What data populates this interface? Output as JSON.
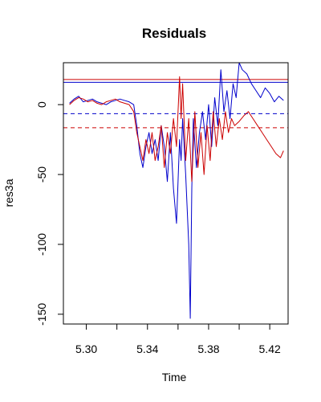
{
  "chart_data": {
    "type": "line",
    "title": "Residuals",
    "xlabel": "Time",
    "ylabel": "res3a",
    "xlim": [
      5.285,
      5.432
    ],
    "ylim": [
      -157,
      30
    ],
    "x_ticks": [
      5.3,
      5.34,
      5.38,
      5.42
    ],
    "x_tick_labels": [
      "5.30",
      "5.34",
      "5.38",
      "5.42"
    ],
    "y_ticks": [
      0,
      -50,
      -100,
      -150
    ],
    "y_tick_labels": [
      "0",
      "-50",
      "-100",
      "-150"
    ],
    "x_minor_ticks": [
      5.28,
      5.32,
      5.36,
      5.4,
      5.44
    ],
    "grid": false,
    "legend": "none",
    "hlines": [
      {
        "y": 18,
        "style": "solid",
        "color": "#cc0000"
      },
      {
        "y": 16,
        "style": "solid",
        "color": "#0000cc"
      },
      {
        "y": -6.5,
        "style": "dashed",
        "color": "#0000cc"
      },
      {
        "y": -16.5,
        "style": "dashed",
        "color": "#cc0000"
      }
    ],
    "series": [
      {
        "color": "#0000cc",
        "x": [
          5.289,
          5.292,
          5.295,
          5.298,
          5.301,
          5.304,
          5.307,
          5.31,
          5.313,
          5.316,
          5.319,
          5.322,
          5.325,
          5.328,
          5.331,
          5.333,
          5.335,
          5.337,
          5.339,
          5.341,
          5.343,
          5.345,
          5.347,
          5.349,
          5.351,
          5.353,
          5.355,
          5.357,
          5.359,
          5.361,
          5.362,
          5.363,
          5.365,
          5.366,
          5.367,
          5.368,
          5.369,
          5.37,
          5.372,
          5.374,
          5.376,
          5.378,
          5.38,
          5.382,
          5.384,
          5.386,
          5.388,
          5.39,
          5.392,
          5.394,
          5.396,
          5.398,
          5.4,
          5.402,
          5.405,
          5.408,
          5.411,
          5.414,
          5.417,
          5.42,
          5.423,
          5.426,
          5.429
        ],
        "y": [
          1,
          4,
          6,
          2,
          3,
          4,
          2,
          1,
          0,
          2,
          3,
          4,
          3,
          2,
          0,
          -15,
          -35,
          -45,
          -30,
          -20,
          -35,
          -25,
          -40,
          -15,
          -30,
          -55,
          -20,
          -60,
          -85,
          -25,
          -40,
          -10,
          -50,
          -75,
          -100,
          -153,
          -60,
          -10,
          -45,
          -20,
          -5,
          -25,
          0,
          -30,
          5,
          -15,
          25,
          -5,
          10,
          -10,
          15,
          5,
          30,
          25,
          22,
          15,
          10,
          5,
          12,
          8,
          2,
          6,
          3
        ]
      },
      {
        "color": "#cc0000",
        "x": [
          5.289,
          5.292,
          5.295,
          5.298,
          5.301,
          5.304,
          5.307,
          5.31,
          5.313,
          5.316,
          5.319,
          5.322,
          5.325,
          5.328,
          5.331,
          5.333,
          5.335,
          5.337,
          5.339,
          5.341,
          5.343,
          5.345,
          5.347,
          5.349,
          5.351,
          5.353,
          5.355,
          5.357,
          5.359,
          5.361,
          5.362,
          5.363,
          5.365,
          5.367,
          5.369,
          5.371,
          5.373,
          5.375,
          5.377,
          5.379,
          5.381,
          5.383,
          5.385,
          5.387,
          5.389,
          5.391,
          5.393,
          5.395,
          5.397,
          5.4,
          5.403,
          5.406,
          5.409,
          5.412,
          5.415,
          5.418,
          5.421,
          5.424,
          5.427,
          5.429
        ],
        "y": [
          0,
          3,
          5,
          4,
          2,
          3,
          1,
          0,
          2,
          3,
          4,
          2,
          1,
          0,
          -5,
          -20,
          -30,
          -40,
          -25,
          -35,
          -20,
          -40,
          -30,
          -15,
          -45,
          -20,
          -35,
          -10,
          -30,
          20,
          -10,
          15,
          -40,
          -10,
          -55,
          -5,
          -45,
          -20,
          -50,
          -15,
          -40,
          -5,
          -30,
          -10,
          -25,
          -5,
          -20,
          -10,
          -15,
          -12,
          -8,
          -5,
          -10,
          -15,
          -20,
          -25,
          -30,
          -35,
          -38,
          -33
        ]
      }
    ]
  }
}
